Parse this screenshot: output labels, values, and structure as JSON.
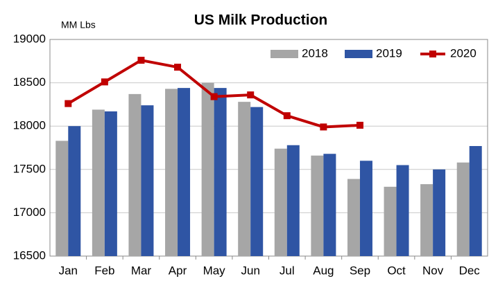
{
  "chart_data": {
    "type": "bar",
    "title": "US Milk Production",
    "y_unit_label": "MM Lbs",
    "categories": [
      "Jan",
      "Feb",
      "Mar",
      "Apr",
      "May",
      "Jun",
      "Jul",
      "Aug",
      "Sep",
      "Oct",
      "Nov",
      "Dec"
    ],
    "series": [
      {
        "name": "2018",
        "type": "bar",
        "color": "#a6a6a6",
        "values": [
          17830,
          18190,
          18370,
          18430,
          18500,
          18280,
          17740,
          17660,
          17390,
          17300,
          17330,
          17580
        ]
      },
      {
        "name": "2019",
        "type": "bar",
        "color": "#2f55a4",
        "values": [
          18000,
          18170,
          18240,
          18440,
          18440,
          18220,
          17780,
          17680,
          17600,
          17550,
          17500,
          17770
        ]
      },
      {
        "name": "2020",
        "type": "line",
        "color": "#c00000",
        "values": [
          18260,
          18510,
          18760,
          18680,
          18340,
          18360,
          18120,
          17990,
          18010,
          null,
          null,
          null
        ]
      }
    ],
    "ylim": [
      16500,
      19000
    ],
    "yticks": [
      16500,
      17000,
      17500,
      18000,
      18500,
      19000
    ],
    "grid": true,
    "legend": "top-right"
  }
}
